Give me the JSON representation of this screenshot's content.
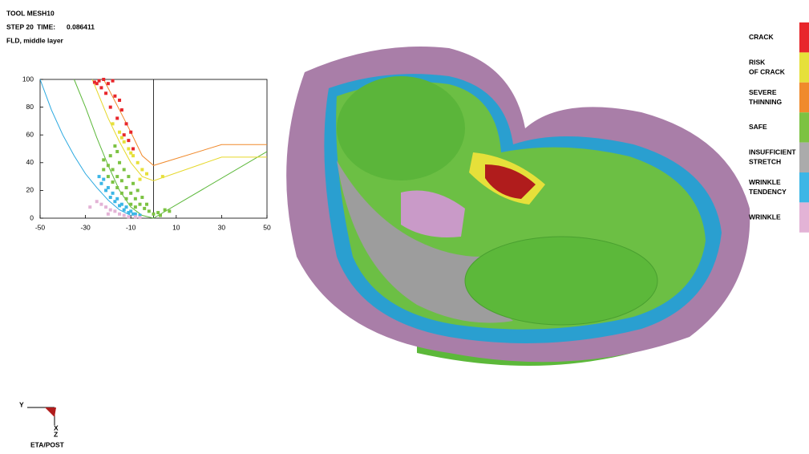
{
  "header": {
    "title": "TOOL MESH10",
    "step_label": "STEP 20",
    "time_label": "TIME:",
    "time_value": "0.086411",
    "subtitle": "FLD, middle layer"
  },
  "fld_chart": {
    "type": "scatter",
    "xlim": [
      -50,
      50
    ],
    "ylim": [
      0,
      100
    ],
    "xticks": [
      -50,
      -30,
      -10,
      10,
      30,
      50
    ],
    "yticks": [
      0,
      20,
      40,
      60,
      80,
      100
    ],
    "divider_x": 0,
    "curves": [
      {
        "color": "#29a8e0",
        "x": [
          -50,
          -45,
          -40,
          -35,
          -30,
          -25,
          -20,
          -15,
          -10
        ],
        "y": [
          100,
          78,
          60,
          45,
          32,
          22,
          13,
          6,
          2
        ]
      },
      {
        "color": "#5cb83a",
        "x": [
          -35,
          -30,
          -25,
          -20,
          -15,
          -10,
          -5,
          0,
          50
        ],
        "y": [
          100,
          80,
          58,
          38,
          20,
          8,
          2,
          0,
          48
        ]
      },
      {
        "color": "#e6d82a",
        "x": [
          -27,
          -20,
          -15,
          -10,
          -5,
          0,
          30,
          50
        ],
        "y": [
          100,
          72,
          55,
          40,
          30,
          27,
          44,
          44
        ]
      },
      {
        "color": "#f08a2c",
        "x": [
          -22,
          -15,
          -10,
          -5,
          0,
          30,
          50
        ],
        "y": [
          100,
          78,
          62,
          45,
          38,
          53,
          53
        ]
      }
    ],
    "series": [
      {
        "color": "#e8262b",
        "x": [
          -26,
          -24,
          -22,
          -20,
          -18,
          -21,
          -17,
          -15,
          -19,
          -14,
          -16,
          -12,
          -10,
          -13,
          -11,
          -9,
          -23,
          -25
        ],
        "y": [
          98,
          99,
          100,
          97,
          99,
          90,
          88,
          85,
          80,
          78,
          72,
          68,
          62,
          60,
          56,
          50,
          94,
          97
        ]
      },
      {
        "color": "#e6e03a",
        "x": [
          -18,
          -15,
          -13,
          -11,
          -9,
          -7,
          -5,
          -3,
          4,
          -6,
          -10,
          -14
        ],
        "y": [
          68,
          62,
          55,
          50,
          45,
          40,
          35,
          32,
          30,
          28,
          47,
          58
        ]
      },
      {
        "color": "#7cc242",
        "x": [
          -22,
          -20,
          -18,
          -16,
          -14,
          -12,
          -10,
          -8,
          -6,
          -4,
          -2,
          0,
          2,
          5,
          -20,
          -18,
          -16,
          -14,
          -12,
          -10,
          -8,
          -22,
          -19,
          -16,
          -17,
          -15,
          -13,
          -11,
          -9,
          -7,
          -5,
          -3,
          7,
          3
        ],
        "y": [
          42,
          38,
          35,
          30,
          27,
          22,
          18,
          14,
          10,
          7,
          5,
          3,
          4,
          6,
          30,
          26,
          22,
          18,
          14,
          10,
          8,
          35,
          45,
          48,
          52,
          40,
          35,
          30,
          25,
          20,
          15,
          10,
          5,
          2
        ]
      },
      {
        "color": "#3cb6e6",
        "x": [
          -24,
          -23,
          -21,
          -19,
          -17,
          -15,
          -13,
          -11,
          -9,
          -22,
          -20,
          -18,
          -16,
          -14,
          -12,
          -10,
          -8,
          -6
        ],
        "y": [
          30,
          25,
          20,
          15,
          12,
          9,
          6,
          4,
          3,
          28,
          22,
          18,
          14,
          10,
          8,
          5,
          3,
          2
        ]
      },
      {
        "color": "#e3b3d6",
        "x": [
          -25,
          -23,
          -21,
          -19,
          -17,
          -15,
          -13,
          -11,
          -28,
          -20,
          -8,
          -6
        ],
        "y": [
          12,
          10,
          8,
          6,
          5,
          3,
          2,
          1,
          8,
          3,
          1,
          0.5
        ]
      }
    ]
  },
  "legend": [
    {
      "label_lines": [
        "CRACK"
      ],
      "color": "#e8262b"
    },
    {
      "label_lines": [
        "RISK",
        "OF CRACK"
      ],
      "color": "#e6e03a"
    },
    {
      "label_lines": [
        "SEVERE",
        "THINNING"
      ],
      "color": "#f08a2c"
    },
    {
      "label_lines": [
        "SAFE"
      ],
      "color": "#7cc242"
    },
    {
      "label_lines": [
        "INSUFFICIENT",
        "STRETCH"
      ],
      "color": "#ababab"
    },
    {
      "label_lines": [
        "WRINKLE",
        "TENDENCY"
      ],
      "color": "#3cb6e6"
    },
    {
      "label_lines": [
        "WRINKLE"
      ],
      "color": "#e3b3d6"
    }
  ],
  "axis_triad": {
    "y": "Y",
    "x": "X",
    "z": "Z"
  },
  "footer": "ETA/POST"
}
